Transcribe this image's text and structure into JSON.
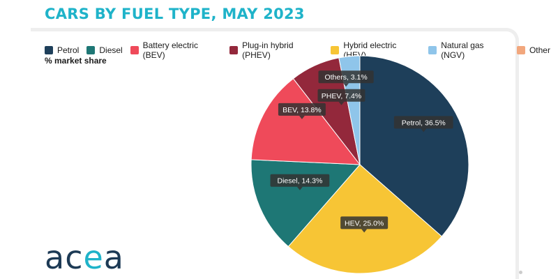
{
  "title": "CARS BY FUEL TYPE, MAY 2023",
  "subtitle": "% market share",
  "logo": {
    "text_main": "ac",
    "text_accent": "e",
    "text_end": "a"
  },
  "legend": [
    {
      "label": "Petrol",
      "color": "#1e3f5a"
    },
    {
      "label": "Diesel",
      "color": "#1e7775"
    },
    {
      "label": "Battery electric (BEV)",
      "color": "#ef4a5a"
    },
    {
      "label": "Plug-in hybrid (PHEV)",
      "color": "#93283b"
    },
    {
      "label": "Hybrid electric (HEV)",
      "color": "#f7c535"
    },
    {
      "label": "Natural gas (NGV)",
      "color": "#8fc5ea"
    },
    {
      "label": "Other",
      "color": "#f2a77d"
    }
  ],
  "chart_data": {
    "type": "pie",
    "title": "CARS BY FUEL TYPE, MAY 2023",
    "subtitle": "% market share",
    "slices": [
      {
        "name": "Petrol",
        "value": 36.5,
        "color": "#1e3f5a",
        "label": "Petrol, 36.5%"
      },
      {
        "name": "Hybrid electric (HEV)",
        "value": 25.0,
        "color": "#f7c535",
        "label": "HEV, 25.0%"
      },
      {
        "name": "Diesel",
        "value": 14.3,
        "color": "#1e7775",
        "label": "Diesel, 14.3%"
      },
      {
        "name": "Battery electric (BEV)",
        "value": 13.8,
        "color": "#ef4a5a",
        "label": "BEV, 13.8%"
      },
      {
        "name": "Plug-in hybrid (PHEV)",
        "value": 7.4,
        "color": "#93283b",
        "label": "PHEV, 7.4%"
      },
      {
        "name": "Others",
        "value": 3.1,
        "color": "#8fc5ea",
        "label": "Others, 3.1%"
      }
    ],
    "legend_position": "top"
  }
}
